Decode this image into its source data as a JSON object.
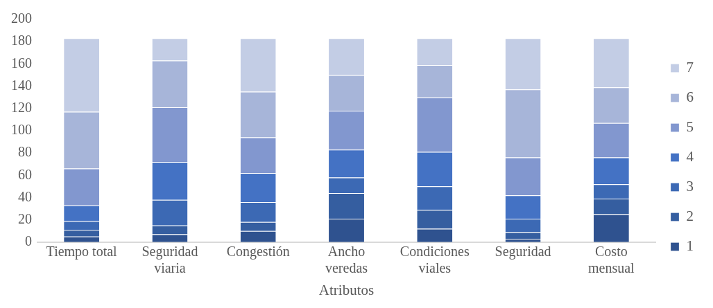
{
  "chart_data": {
    "type": "bar",
    "stacked": true,
    "xlabel": "Atributos",
    "categories": [
      "Tiempo total",
      "Seguridad viaria",
      "Congestión",
      "Ancho veredas",
      "Condiciones viales",
      "Seguridad",
      "Costo mensual"
    ],
    "series": [
      {
        "name": "1",
        "color": "#2f528f",
        "values": [
          5,
          7,
          10,
          21,
          12,
          3,
          25
        ]
      },
      {
        "name": "2",
        "color": "#355ea0",
        "values": [
          6,
          8,
          8,
          23,
          17,
          6,
          14
        ]
      },
      {
        "name": "3",
        "color": "#3c69b4",
        "values": [
          8,
          23,
          18,
          14,
          21,
          12,
          13
        ]
      },
      {
        "name": "4",
        "color": "#4472c4",
        "values": [
          14,
          34,
          26,
          25,
          31,
          21,
          24
        ]
      },
      {
        "name": "5",
        "color": "#8297cf",
        "values": [
          33,
          49,
          32,
          35,
          49,
          34,
          31
        ]
      },
      {
        "name": "6",
        "color": "#a7b5d9",
        "values": [
          51,
          42,
          41,
          32,
          29,
          61,
          32
        ]
      },
      {
        "name": "7",
        "color": "#c3cde5",
        "values": [
          66,
          20,
          48,
          33,
          24,
          46,
          44
        ]
      }
    ],
    "ylim": [
      0,
      200
    ],
    "yticks": [
      0,
      20,
      40,
      60,
      80,
      100,
      120,
      140,
      160,
      180,
      200
    ],
    "grid": false,
    "legend": "right"
  }
}
